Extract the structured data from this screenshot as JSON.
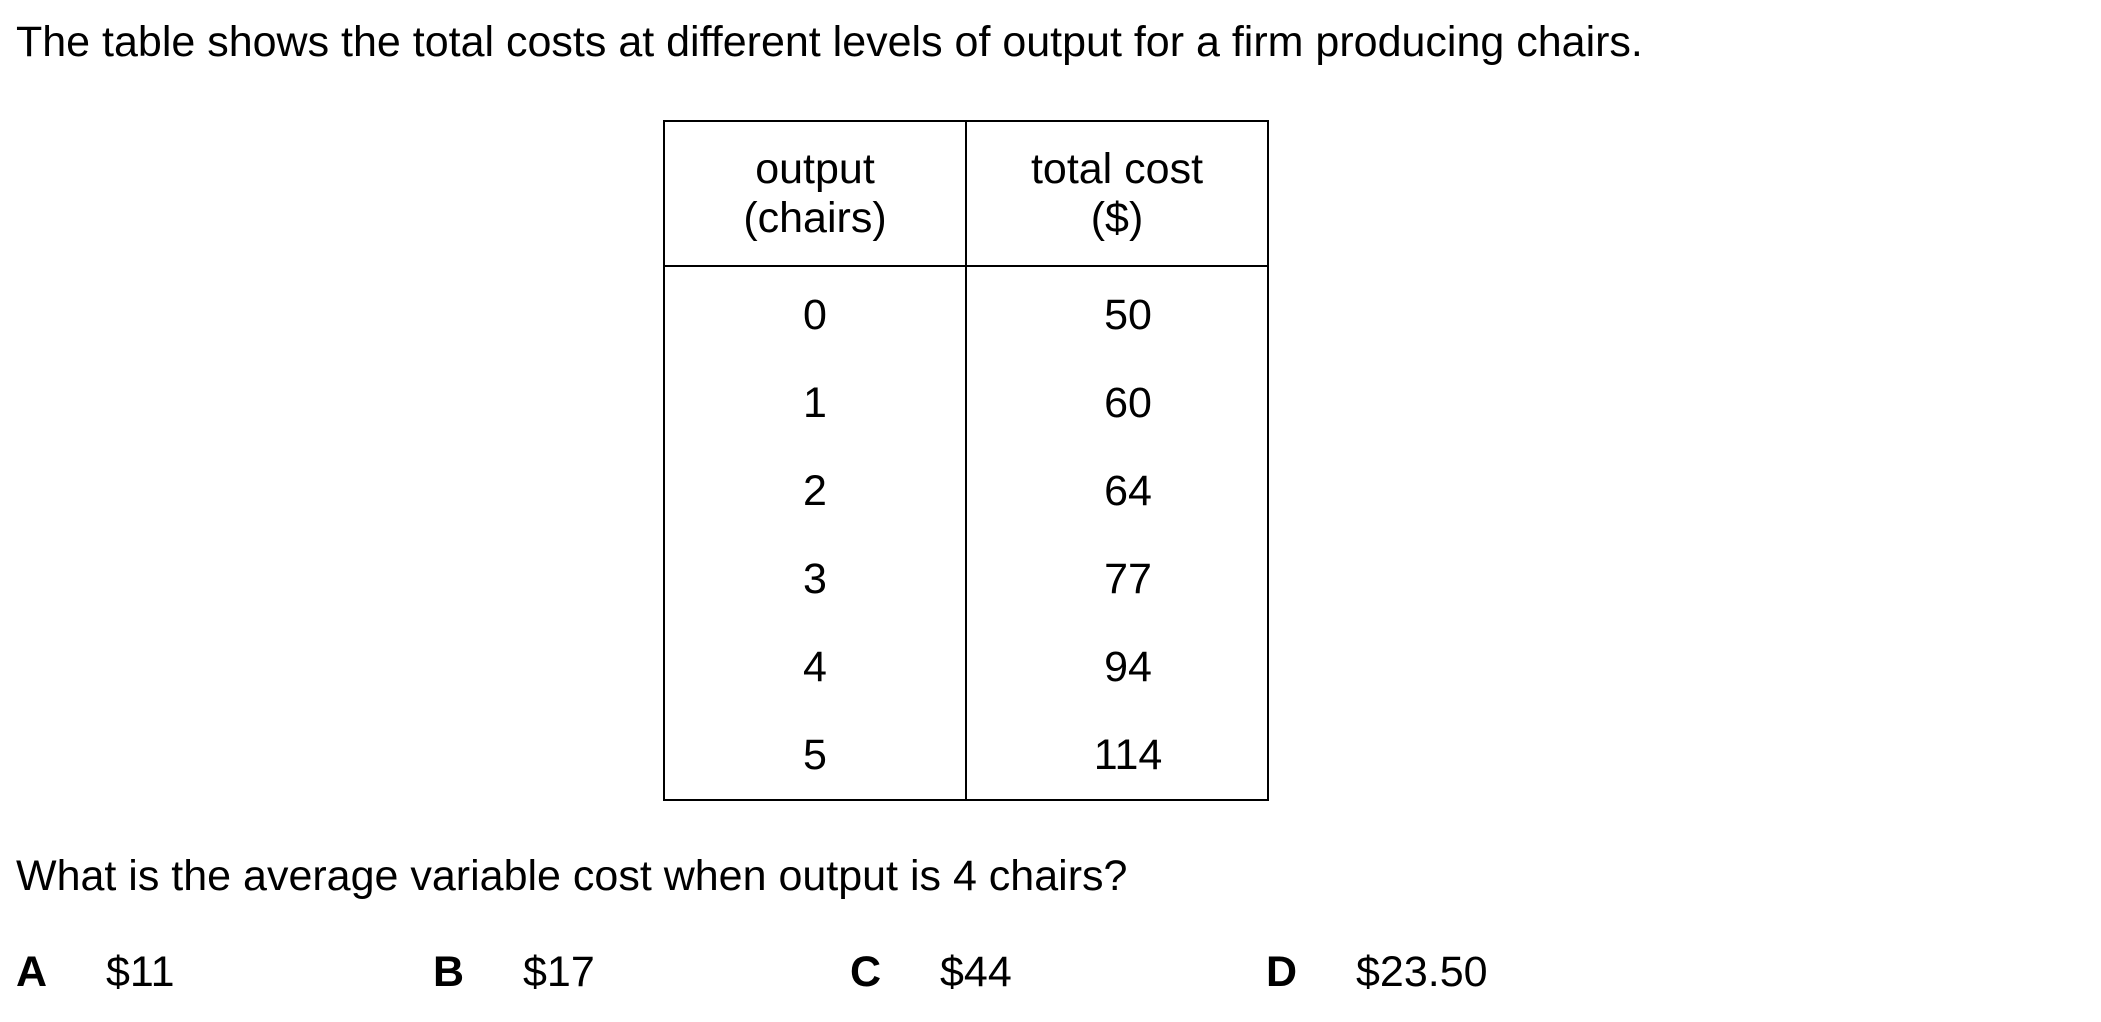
{
  "intro": "The table shows the total costs at different levels of output for a firm producing chairs.",
  "table": {
    "headers": [
      {
        "line1": "output",
        "line2": "(chairs)"
      },
      {
        "line1": "total cost",
        "line2": "($)"
      }
    ],
    "rows": [
      {
        "output": "0",
        "total_cost": "50"
      },
      {
        "output": "1",
        "total_cost": "60"
      },
      {
        "output": "2",
        "total_cost": "64"
      },
      {
        "output": "3",
        "total_cost": "77"
      },
      {
        "output": "4",
        "total_cost": "94"
      },
      {
        "output": "5",
        "total_cost": "114"
      }
    ]
  },
  "question": "What is the average variable cost when output is 4 chairs?",
  "options": [
    {
      "letter": "A",
      "text": "$11"
    },
    {
      "letter": "B",
      "text": "$17"
    },
    {
      "letter": "C",
      "text": "$44"
    },
    {
      "letter": "D",
      "text": "$23.50"
    }
  ]
}
